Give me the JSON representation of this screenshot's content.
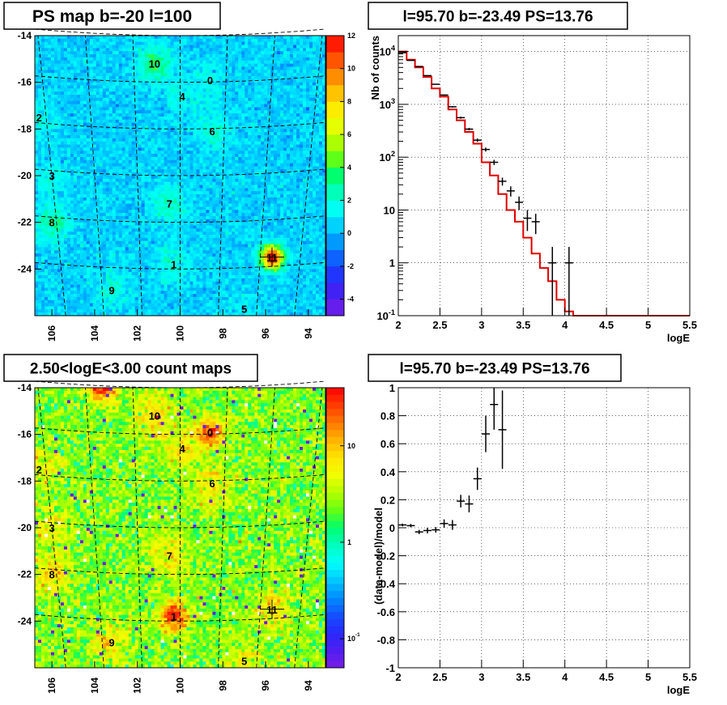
{
  "chart_data": [
    {
      "type": "heatmap",
      "title": "PS map b=-20 l=100",
      "xlabel": "",
      "ylabel": "",
      "xlim": [
        106.8,
        93.2
      ],
      "ylim": [
        -26.0,
        -14.0
      ],
      "x_ticks": [
        "106",
        "104",
        "102",
        "100",
        "98",
        "96",
        "94"
      ],
      "y_ticks": [
        "-14",
        "-16",
        "-18",
        "-20",
        "-22",
        "-24"
      ],
      "colorbar": {
        "min": -5,
        "max": 12,
        "ticks": [
          "12",
          "10",
          "8",
          "6",
          "4",
          "2",
          "0",
          "-2",
          "-4"
        ]
      },
      "background_level": 0.5,
      "grid": "dashed graticule",
      "sources": [
        {
          "label": "0",
          "l": 98.6,
          "b": -15.9,
          "level": 1
        },
        {
          "label": "1",
          "l": 100.3,
          "b": -23.8,
          "level": 1.5
        },
        {
          "label": "2",
          "l": 106.6,
          "b": -17.5,
          "level": 1
        },
        {
          "label": "3",
          "l": 106.0,
          "b": -20.0,
          "level": 1
        },
        {
          "label": "4",
          "l": 99.9,
          "b": -16.6,
          "level": 1
        },
        {
          "label": "5",
          "l": 97.0,
          "b": -25.7,
          "level": 0.5
        },
        {
          "label": "6",
          "l": 98.5,
          "b": -18.1,
          "level": 1.5
        },
        {
          "label": "7",
          "l": 100.5,
          "b": -21.2,
          "level": 2
        },
        {
          "label": "8",
          "l": 106.0,
          "b": -22.0,
          "level": 2.5
        },
        {
          "label": "9",
          "l": 103.2,
          "b": -24.9,
          "level": 1.5
        },
        {
          "label": "10",
          "l": 101.2,
          "b": -15.2,
          "level": 3
        },
        {
          "label": "11",
          "l": 95.7,
          "b": -23.5,
          "level": 12
        }
      ],
      "marker": {
        "l": 95.7,
        "b": -23.49
      }
    },
    {
      "type": "line",
      "title": "l=95.70 b=-23.49 PS=13.76",
      "xlabel": "logE",
      "ylabel": "Nb of counts",
      "xlim": [
        2,
        5.5
      ],
      "ylim": [
        0.1,
        20000
      ],
      "yscale": "log",
      "x_ticks": [
        "2",
        "2.5",
        "3",
        "3.5",
        "4",
        "4.5",
        "5",
        "5.5"
      ],
      "y_ticks": [
        "10^4",
        "10^3",
        "10^2",
        "10",
        "1",
        "10^-1"
      ],
      "grid": true,
      "series": [
        {
          "style": "step",
          "bin_edges": [
            2.0,
            2.1,
            2.2,
            2.3,
            2.4,
            2.5,
            2.6,
            2.7,
            2.8,
            2.9,
            3.0,
            3.1,
            3.2,
            3.3,
            3.4,
            3.5,
            3.6,
            3.7,
            3.8,
            3.9,
            4.0,
            4.1,
            5.5
          ],
          "values": [
            10000,
            7000,
            5000,
            3300,
            2000,
            1400,
            800,
            500,
            300,
            180,
            80,
            45,
            20,
            10,
            6,
            3,
            1.5,
            0.8,
            0.45,
            0.2,
            0.12,
            0.1
          ]
        },
        {
          "style": "points",
          "x": [
            2.05,
            2.15,
            2.25,
            2.35,
            2.45,
            2.55,
            2.65,
            2.75,
            2.85,
            2.95,
            3.05,
            3.15,
            3.25,
            3.35,
            3.45,
            3.55,
            3.65,
            3.85,
            4.05
          ],
          "y": [
            9500,
            6800,
            5200,
            3500,
            2400,
            1500,
            900,
            560,
            340,
            210,
            140,
            80,
            35,
            23,
            14,
            7,
            6,
            1,
            1
          ],
          "yerr_low": [
            95,
            80,
            70,
            60,
            50,
            40,
            30,
            24,
            19,
            15,
            12,
            9,
            6,
            5,
            4,
            3,
            2.5,
            0.99,
            0.99
          ],
          "yerr_high": [
            95,
            80,
            70,
            60,
            50,
            40,
            30,
            24,
            19,
            15,
            12,
            9,
            6,
            5,
            4,
            3,
            2.5,
            1.0,
            1.0
          ]
        }
      ]
    },
    {
      "type": "heatmap",
      "title": "2.50<logE<3.00 count maps",
      "xlabel": "",
      "ylabel": "",
      "xlim": [
        106.8,
        93.2
      ],
      "ylim": [
        -26.0,
        -14.0
      ],
      "x_ticks": [
        "106",
        "104",
        "102",
        "100",
        "98",
        "96",
        "94"
      ],
      "y_ticks": [
        "-14",
        "-16",
        "-18",
        "-20",
        "-22",
        "-24"
      ],
      "colorbar": {
        "scale": "log",
        "min": 0.05,
        "max": 40,
        "ticks": [
          "10",
          "1",
          "10^-1"
        ]
      },
      "background_level": 2.5,
      "grid": "dashed graticule",
      "sources": [
        {
          "label": "0",
          "l": 98.6,
          "b": -15.9,
          "level": 20
        },
        {
          "label": "1",
          "l": 100.3,
          "b": -23.8,
          "level": 25
        },
        {
          "label": "2",
          "l": 106.6,
          "b": -17.5,
          "level": 3
        },
        {
          "label": "3",
          "l": 106.0,
          "b": -20.0,
          "level": 3
        },
        {
          "label": "4",
          "l": 99.9,
          "b": -16.6,
          "level": 4
        },
        {
          "label": "5",
          "l": 97.0,
          "b": -25.7,
          "level": 3
        },
        {
          "label": "6",
          "l": 98.5,
          "b": -18.1,
          "level": 4
        },
        {
          "label": "7",
          "l": 100.5,
          "b": -21.2,
          "level": 4
        },
        {
          "label": "8",
          "l": 106.0,
          "b": -22.0,
          "level": 5
        },
        {
          "label": "9",
          "l": 103.2,
          "b": -24.9,
          "level": 4
        },
        {
          "label": "10",
          "l": 101.2,
          "b": -15.2,
          "level": 5
        },
        {
          "label": "11",
          "l": 95.7,
          "b": -23.5,
          "level": 4
        },
        {
          "label": "",
          "l": 103.6,
          "b": -14.0,
          "level": 25
        }
      ],
      "marker": {
        "l": 95.7,
        "b": -23.49
      }
    },
    {
      "type": "scatter",
      "title": "l=95.70 b=-23.49 PS=13.76",
      "xlabel": "logE",
      "ylabel": "(data-model)/model",
      "xlim": [
        2,
        5.5
      ],
      "ylim": [
        -1,
        1
      ],
      "x_ticks": [
        "2",
        "2.5",
        "3",
        "3.5",
        "4",
        "4.5",
        "5",
        "5.5"
      ],
      "y_ticks": [
        "1",
        "0.8",
        "0.6",
        "0.4",
        "0.2",
        "0",
        "-0.2",
        "-0.4",
        "-0.6",
        "-0.8",
        "-1"
      ],
      "grid": true,
      "series": [
        {
          "x": [
            2.05,
            2.15,
            2.25,
            2.35,
            2.45,
            2.55,
            2.65,
            2.75,
            2.85,
            2.95,
            3.05,
            3.15,
            3.25
          ],
          "y": [
            0.02,
            0.015,
            -0.03,
            -0.02,
            -0.015,
            0.03,
            0.02,
            0.19,
            0.17,
            0.35,
            0.67,
            0.88,
            0.7
          ],
          "yerr": [
            0.01,
            0.012,
            0.015,
            0.02,
            0.02,
            0.03,
            0.035,
            0.045,
            0.06,
            0.08,
            0.13,
            0.18,
            0.28
          ]
        }
      ]
    }
  ]
}
